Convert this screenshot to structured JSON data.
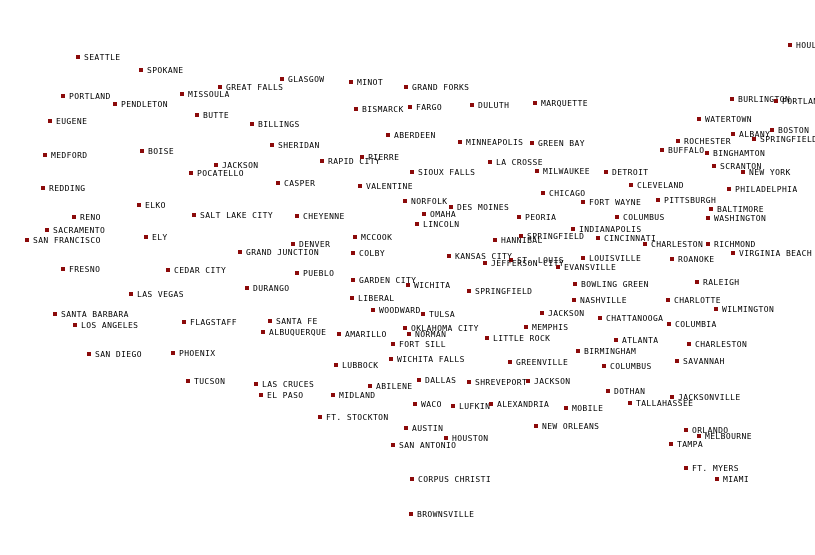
{
  "cities": [
    "SEATTLE",
    "SPOKANE",
    "PORTLAND",
    "PENDLETON",
    "MISSOULA",
    "GREAT FALLS",
    "GLASGOW",
    "MINOT",
    "GRAND FORKS",
    "BUTTE",
    "EUGENE",
    "BILLINGS",
    "BISMARCK",
    "FARGO",
    "DULUTH",
    "MARQUETTE",
    "ABERDEEN",
    "MINNEAPOLIS",
    "GREEN BAY",
    "MEDFORD",
    "BOISE",
    "SHERIDAN",
    "RAPID CITY",
    "PIERRE",
    "JACKSON",
    "POCATELLO",
    "SIOUX FALLS",
    "LA CROSSE",
    "MILWAUKEE",
    "DETROIT",
    "CASPER",
    "VALENTINE",
    "REDDING",
    "CLEVELAND",
    "CHICAGO",
    "ELKO",
    "NORFOLK",
    "DES MOINES",
    "FORT WAYNE",
    "SALT LAKE CITY",
    "CHEYENNE",
    "OMAHA",
    "LINCOLN",
    "PEORIA",
    "COLUMBUS",
    "RENO",
    "SACRAMENTO",
    "SAN FRANCISCO",
    "ELY",
    "MCCOOK",
    "HANNIBAL",
    "SPRINGFIELD",
    "INDIANAPOLIS",
    "CINCINNATI",
    "DENVER",
    "GRAND JUNCTION",
    "COLBY",
    "KANSAS CITY",
    "ST. LOUIS",
    "JEFFERSON CITY",
    "EVANSVILLE",
    "LOUISVILLE",
    "FRESNO",
    "CEDAR CITY",
    "PUEBLO",
    "GARDEN CITY",
    "WICHITA",
    "DURANGO",
    "LAS VEGAS",
    "LIBERAL",
    "SPRINGFIELD",
    "BOWLING GREEN",
    "NASHVILLE",
    "SANTA BARBARA",
    "FLAGSTAFF",
    "SANTA FE",
    "WOODWARD",
    "TULSA",
    "JACKSON",
    "CHATTANOOGA",
    "LOS ANGELES",
    "ALBUQUERQUE",
    "AMARILLO",
    "OKLAHOMA CITY",
    "NORMAN",
    "MEMPHIS",
    "FORT SILL",
    "LITTLE ROCK",
    "ATLANTA",
    "SAN DIEGO",
    "PHOENIX",
    "BIRMINGHAM",
    "LUBBOCK",
    "WICHITA FALLS",
    "GREENVILLE",
    "COLUMBUS",
    "TUCSON",
    "LAS CRUCES",
    "ABILENE",
    "DALLAS",
    "SHREVEPORT",
    "JACKSON",
    "EL PASO",
    "MIDLAND",
    "DOTHAN",
    "WACO",
    "LUFKIN",
    "ALEXANDRIA",
    "MOBILE",
    "TALLAHASSEE",
    "FT. STOCKTON",
    "AUSTIN",
    "NEW ORLEANS",
    "HOUSTON",
    "SAN ANTONIO",
    "CORPUS CHRISTI",
    "BROWNSVILLE",
    "HOULTON",
    "BURLINGTON",
    "PORTLAND",
    "WATERTOWN",
    "ALBANY",
    "BOSTON",
    "ROCHESTER",
    "SPRINGFIELD",
    "BUFFALO",
    "BINGHAMTON",
    "SCRANTON",
    "NEW YORK",
    "PHILADELPHIA",
    "PITTSBURGH",
    "BALTIMORE",
    "WASHINGTON",
    "CHARLESTON",
    "RICHMOND",
    "ROANOKE",
    "VIRGINIA BEACH",
    "RALEIGH",
    "CHARLOTTE",
    "WILMINGTON",
    "COLUMBIA",
    "CHARLESTON",
    "SAVANNAH",
    "JACKSONVILLE",
    "ORLANDO",
    "MELBOURNE",
    "TAMPA",
    "FT. MYERS",
    "MIAMI"
  ]
}
